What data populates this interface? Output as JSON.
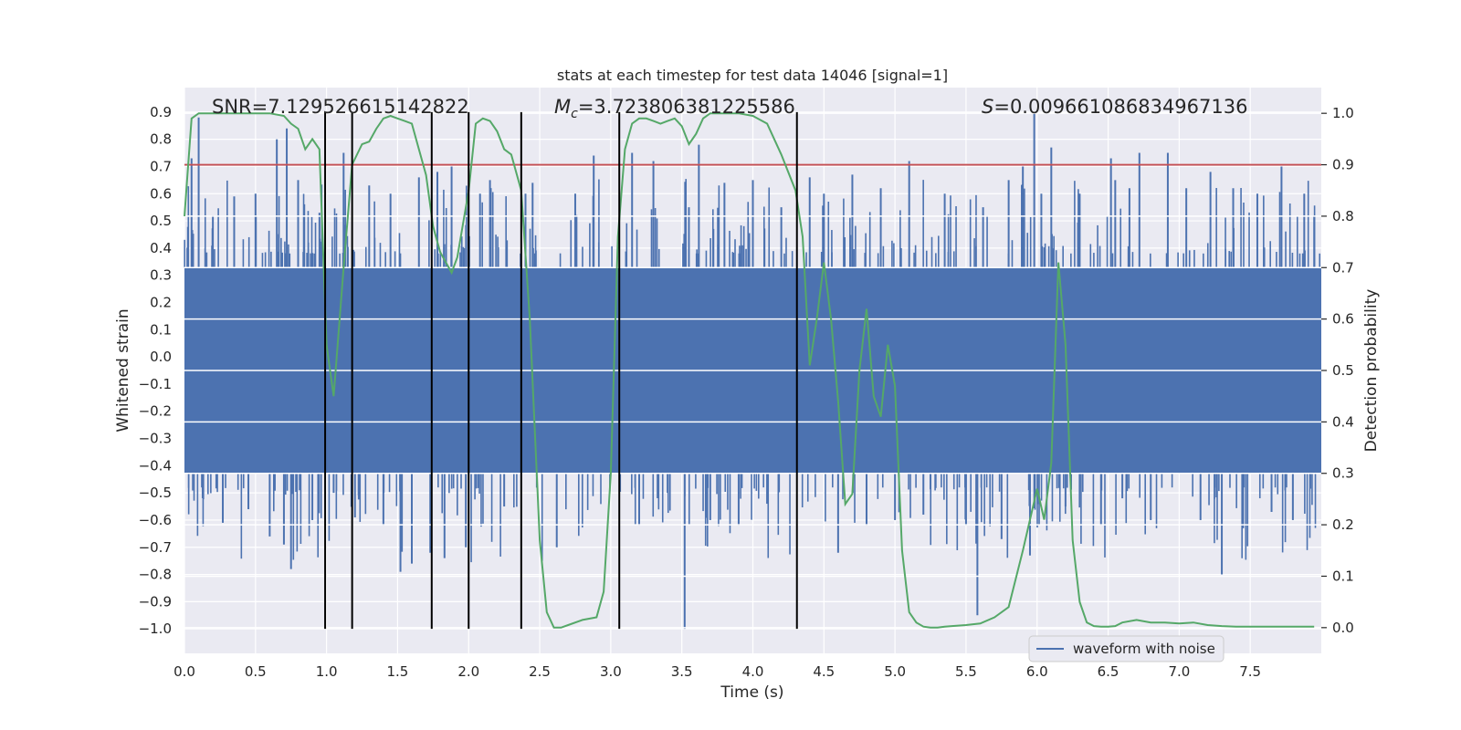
{
  "chart_data": {
    "type": "line",
    "title": "stats at each timestep for test data 14046 [signal=1]",
    "xlabel": "Time (s)",
    "ylabel": "Whitened strain",
    "y2label": "Detection probability",
    "xlim": [
      0.0,
      8.0
    ],
    "ylim": [
      -1.09,
      0.99
    ],
    "y2lim": [
      -0.05,
      1.05
    ],
    "x_ticks": [
      "0.0",
      "0.5",
      "1.0",
      "1.5",
      "2.0",
      "2.5",
      "3.0",
      "3.5",
      "4.0",
      "4.5",
      "5.0",
      "5.5",
      "6.0",
      "6.5",
      "7.0",
      "7.5"
    ],
    "y_ticks": [
      "0.9",
      "0.8",
      "0.7",
      "0.6",
      "0.5",
      "0.4",
      "0.3",
      "0.2",
      "0.1",
      "0.0",
      "−0.1",
      "−0.2",
      "−0.3",
      "−0.4",
      "−0.5",
      "−0.6",
      "−0.7",
      "−0.8",
      "−0.9",
      "−1.0"
    ],
    "y2_ticks": [
      "1.0",
      "0.9",
      "0.8",
      "0.7",
      "0.6",
      "0.5",
      "0.4",
      "0.3",
      "0.2",
      "0.1",
      "0.0"
    ],
    "grid": true,
    "legend_position": "lower-right",
    "annotations": {
      "snr": "SNR=7.129526615142822",
      "mc": "=3.723806381225586",
      "mc_symbol": "M",
      "mc_subscript": "c",
      "s": "=0.009661086834967136",
      "s_symbol": "S"
    },
    "threshold": {
      "y2": 0.9,
      "color": "#c44e52"
    },
    "event_lines_x": [
      0.99,
      1.18,
      1.74,
      2.0,
      2.37,
      3.06,
      4.31
    ],
    "event_lines_ymax": 0.9,
    "event_lines_ymin": -1.0,
    "series": [
      {
        "name": "waveform with noise",
        "color": "#4c72b0",
        "band_envelope": [
          0.33,
          -0.43
        ],
        "spikes": [
          [
            0.05,
            0.73
          ],
          [
            0.1,
            0.88
          ],
          [
            0.2,
            0.52
          ],
          [
            0.27,
            -0.61
          ],
          [
            0.35,
            0.59
          ],
          [
            0.45,
            -0.56
          ],
          [
            0.5,
            0.6
          ],
          [
            0.6,
            -0.66
          ],
          [
            0.65,
            0.8
          ],
          [
            0.7,
            -0.69
          ],
          [
            0.72,
            0.84
          ],
          [
            0.75,
            -0.78
          ],
          [
            0.8,
            0.65
          ],
          [
            0.9,
            -0.6
          ],
          [
            0.95,
            0.53
          ],
          [
            1.05,
            -0.5
          ],
          [
            1.12,
            0.75
          ],
          [
            1.2,
            -0.59
          ],
          [
            1.3,
            0.63
          ],
          [
            1.4,
            -0.62
          ],
          [
            1.45,
            0.6
          ],
          [
            1.52,
            -0.79
          ],
          [
            1.6,
            -0.76
          ],
          [
            1.65,
            0.66
          ],
          [
            1.73,
            -0.72
          ],
          [
            1.78,
            0.68
          ],
          [
            1.83,
            -0.74
          ],
          [
            1.88,
            0.7
          ],
          [
            1.98,
            -0.7
          ],
          [
            2.08,
            0.6
          ],
          [
            2.15,
            0.65
          ],
          [
            2.25,
            -0.55
          ],
          [
            2.4,
            0.6
          ],
          [
            2.45,
            0.64
          ],
          [
            2.62,
            -0.7
          ],
          [
            2.75,
            0.6
          ],
          [
            2.88,
            0.74
          ],
          [
            3.15,
            0.75
          ],
          [
            3.2,
            -0.62
          ],
          [
            3.3,
            0.72
          ],
          [
            3.4,
            -0.5
          ],
          [
            3.52,
            -1.0
          ],
          [
            3.55,
            0.55
          ],
          [
            3.62,
            0.78
          ],
          [
            3.7,
            -0.6
          ],
          [
            3.8,
            0.64
          ],
          [
            3.9,
            -0.62
          ],
          [
            4.0,
            0.65
          ],
          [
            4.1,
            -0.54
          ],
          [
            4.2,
            0.55
          ],
          [
            4.4,
            0.66
          ],
          [
            4.5,
            0.6
          ],
          [
            4.6,
            -0.72
          ],
          [
            4.7,
            0.67
          ],
          [
            4.8,
            -0.62
          ],
          [
            4.9,
            0.62
          ],
          [
            5.0,
            -0.6
          ],
          [
            5.1,
            0.72
          ],
          [
            5.2,
            -0.58
          ],
          [
            5.35,
            0.6
          ],
          [
            5.5,
            -0.62
          ],
          [
            5.58,
            -0.95
          ],
          [
            5.62,
            0.55
          ],
          [
            5.75,
            -0.67
          ],
          [
            5.8,
            0.65
          ],
          [
            5.9,
            0.7
          ],
          [
            5.95,
            -0.73
          ],
          [
            5.98,
            0.9
          ],
          [
            6.03,
            0.6
          ],
          [
            6.1,
            0.77
          ],
          [
            6.2,
            -0.55
          ],
          [
            6.3,
            0.6
          ],
          [
            6.45,
            -0.62
          ],
          [
            6.52,
            0.73
          ],
          [
            6.55,
            0.65
          ],
          [
            6.6,
            -0.52
          ],
          [
            6.65,
            0.62
          ],
          [
            6.72,
            0.75
          ],
          [
            6.8,
            -0.6
          ],
          [
            6.92,
            0.75
          ],
          [
            7.05,
            0.62
          ],
          [
            7.15,
            -0.6
          ],
          [
            7.22,
            0.68
          ],
          [
            7.3,
            -0.8
          ],
          [
            7.38,
            0.62
          ],
          [
            7.45,
            -0.63
          ],
          [
            7.55,
            0.6
          ],
          [
            7.65,
            -0.57
          ],
          [
            7.72,
            0.7
          ],
          [
            7.8,
            -0.6
          ],
          [
            7.88,
            0.6
          ],
          [
            7.95,
            0.52
          ]
        ]
      },
      {
        "axis": "right",
        "color": "#55a868",
        "x": [
          0.0,
          0.05,
          0.1,
          0.2,
          0.3,
          0.4,
          0.5,
          0.6,
          0.7,
          0.75,
          0.8,
          0.85,
          0.9,
          0.95,
          1.0,
          1.05,
          1.12,
          1.18,
          1.25,
          1.3,
          1.35,
          1.4,
          1.45,
          1.5,
          1.55,
          1.6,
          1.7,
          1.75,
          1.8,
          1.88,
          1.92,
          2.0,
          2.05,
          2.1,
          2.15,
          2.2,
          2.25,
          2.3,
          2.37,
          2.43,
          2.5,
          2.55,
          2.6,
          2.65,
          2.7,
          2.8,
          2.9,
          2.95,
          3.0,
          3.05,
          3.1,
          3.15,
          3.2,
          3.25,
          3.3,
          3.35,
          3.4,
          3.45,
          3.5,
          3.55,
          3.6,
          3.65,
          3.7,
          3.75,
          3.8,
          3.85,
          3.9,
          4.0,
          4.1,
          4.2,
          4.3,
          4.35,
          4.4,
          4.45,
          4.5,
          4.55,
          4.6,
          4.65,
          4.7,
          4.75,
          4.8,
          4.85,
          4.9,
          4.95,
          5.0,
          5.05,
          5.1,
          5.15,
          5.2,
          5.25,
          5.3,
          5.35,
          5.4,
          5.5,
          5.6,
          5.7,
          5.8,
          5.9,
          6.0,
          6.05,
          6.1,
          6.15,
          6.2,
          6.25,
          6.3,
          6.35,
          6.4,
          6.45,
          6.5,
          6.55,
          6.6,
          6.7,
          6.8,
          6.9,
          7.0,
          7.1,
          7.2,
          7.3,
          7.4,
          7.5,
          7.6,
          7.7,
          7.8,
          7.9,
          7.95
        ],
        "values": [
          0.8,
          0.99,
          1.0,
          1.0,
          1.0,
          1.0,
          1.0,
          1.0,
          0.995,
          0.98,
          0.97,
          0.93,
          0.95,
          0.93,
          0.55,
          0.45,
          0.7,
          0.9,
          0.94,
          0.945,
          0.97,
          0.99,
          0.995,
          0.99,
          0.985,
          0.98,
          0.88,
          0.78,
          0.73,
          0.69,
          0.72,
          0.85,
          0.98,
          0.99,
          0.985,
          0.965,
          0.93,
          0.92,
          0.85,
          0.6,
          0.17,
          0.03,
          0.0,
          0.0,
          0.005,
          0.015,
          0.02,
          0.07,
          0.3,
          0.76,
          0.93,
          0.98,
          0.99,
          0.99,
          0.985,
          0.98,
          0.985,
          0.99,
          0.975,
          0.94,
          0.96,
          0.99,
          1.0,
          1.0,
          1.0,
          1.0,
          1.0,
          0.995,
          0.98,
          0.92,
          0.85,
          0.76,
          0.51,
          0.6,
          0.71,
          0.6,
          0.44,
          0.24,
          0.26,
          0.5,
          0.62,
          0.45,
          0.41,
          0.55,
          0.47,
          0.15,
          0.03,
          0.01,
          0.002,
          0.0,
          0.0,
          0.002,
          0.003,
          0.005,
          0.008,
          0.02,
          0.04,
          0.15,
          0.27,
          0.21,
          0.32,
          0.71,
          0.55,
          0.17,
          0.05,
          0.01,
          0.003,
          0.002,
          0.002,
          0.003,
          0.01,
          0.015,
          0.01,
          0.01,
          0.008,
          0.01,
          0.005,
          0.003,
          0.002,
          0.002,
          0.002,
          0.002,
          0.002,
          0.002,
          0.002
        ]
      }
    ]
  }
}
